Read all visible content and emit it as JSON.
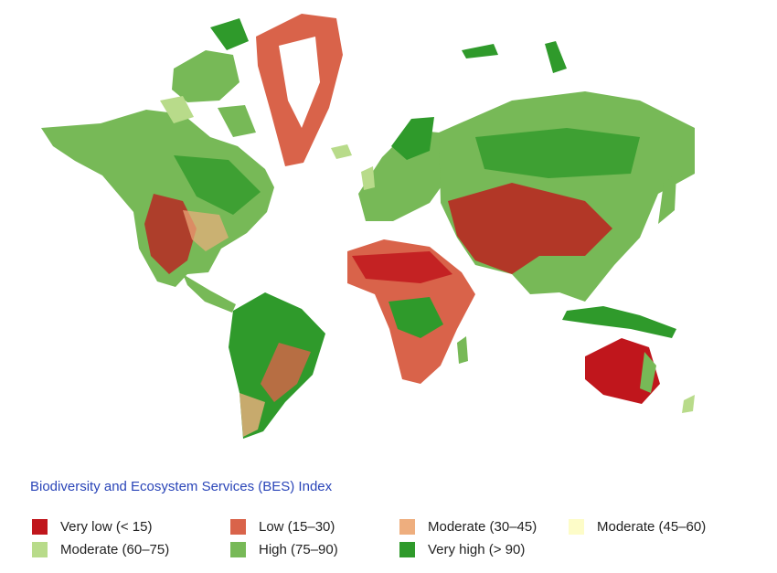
{
  "legend": {
    "title": "Biodiversity and Ecosystem Services (BES) Index",
    "title_color": "#2a45b8",
    "items": [
      {
        "label": "Very low (< 15)",
        "color": "#c0161c"
      },
      {
        "label": "Low (15–30)",
        "color": "#d9634a"
      },
      {
        "label": "Moderate (30–45)",
        "color": "#eeae7e"
      },
      {
        "label": "Moderate (45–60)",
        "color": "#fdfcc8"
      },
      {
        "label": "Moderate (60–75)",
        "color": "#b8db8a"
      },
      {
        "label": "High (75–90)",
        "color": "#77b957"
      },
      {
        "label": "Very high (> 90)",
        "color": "#2f9a2b"
      }
    ]
  }
}
